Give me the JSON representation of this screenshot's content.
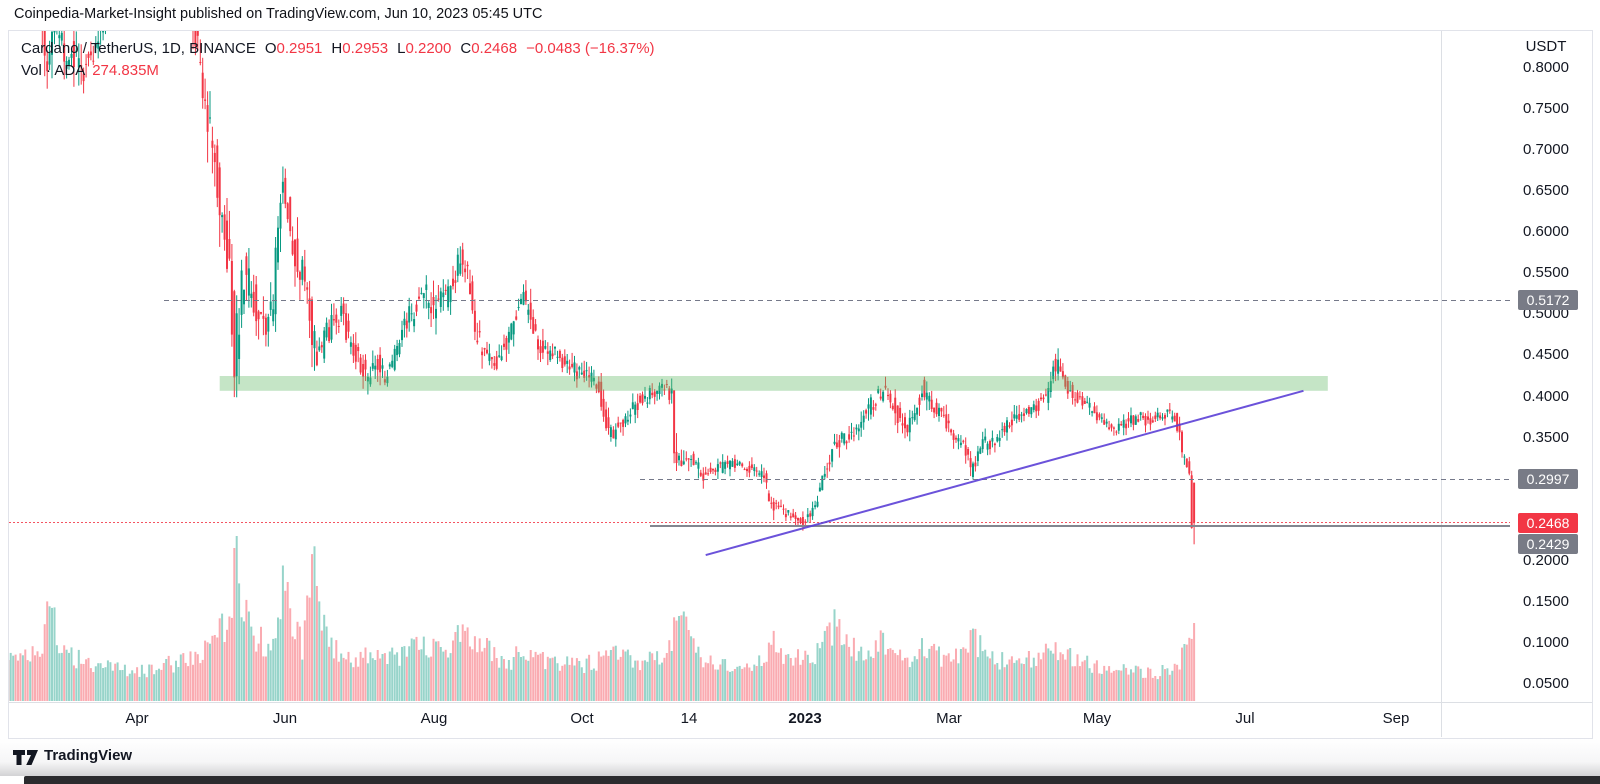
{
  "page": {
    "header": "Coinpedia-Market-Insight published on TradingView.com, Jun 10, 2023 05:45 UTC",
    "footer_brand": "TradingView"
  },
  "legend": {
    "title": "Cardano / TetherUS, 1D, BINANCE",
    "ohlc": [
      {
        "label": "O",
        "value": "0.2951"
      },
      {
        "label": "H",
        "value": "0.2953"
      },
      {
        "label": "L",
        "value": "0.2200"
      },
      {
        "label": "C",
        "value": "0.2468"
      }
    ],
    "change": "−0.0483 (−16.37%)",
    "vol_label": "Vol · ADA",
    "vol_value": "274.835M"
  },
  "colors": {
    "up": "#089981",
    "down": "#F23645",
    "text": "#131722",
    "muted_gray": "#787B86",
    "purple": "#5B3FD6",
    "zone_green": "#66BB6A",
    "badge_gray": "#787B86",
    "badge_red": "#F23645"
  },
  "chart_data": {
    "type": "candlestick",
    "title": "Cardano / TetherUS, 1D, BINANCE",
    "pair": "ADA/USDT",
    "interval": "1D",
    "exchange": "BINANCE",
    "last_candle": {
      "open": 0.2951,
      "high": 0.2953,
      "low": 0.22,
      "close": 0.2468,
      "change": -0.0483,
      "change_pct": -16.37,
      "volume": "274.835M",
      "direction": "down"
    },
    "y_axis": {
      "title": "USDT",
      "ticks": [
        "0.8000",
        "0.7500",
        "0.7000",
        "0.6500",
        "0.6000",
        "0.5500",
        "0.5000",
        "0.4500",
        "0.4000",
        "0.3500",
        "0.2000",
        "0.1500",
        "0.1000",
        "0.0500"
      ],
      "visible_range": [
        0.03,
        0.847
      ],
      "grid": false
    },
    "x_axis": {
      "start_date": "2022-02-04",
      "end_label_date": "2023-09-01",
      "labels": [
        {
          "text": "Apr",
          "day": 56,
          "bold": false
        },
        {
          "text": "Jun",
          "day": 117,
          "bold": false
        },
        {
          "text": "Aug",
          "day": 178,
          "bold": false
        },
        {
          "text": "Oct",
          "day": 239,
          "bold": false
        },
        {
          "text": "14",
          "day": 283,
          "bold": false
        },
        {
          "text": "2023",
          "day": 331,
          "bold": true
        },
        {
          "text": "Mar",
          "day": 390,
          "bold": false
        },
        {
          "text": "May",
          "day": 451,
          "bold": false
        },
        {
          "text": "Jul",
          "day": 512,
          "bold": false
        },
        {
          "text": "Sep",
          "day": 574,
          "bold": false
        }
      ]
    },
    "levels": [
      {
        "value": "0.5172",
        "price": 0.5172,
        "style": "dashed",
        "color": "gray",
        "from_day": 67,
        "role": "resistance"
      },
      {
        "value": "0.2997",
        "price": 0.2997,
        "style": "dashed",
        "color": "gray",
        "from_day": 263,
        "role": "support"
      },
      {
        "value": "0.2468",
        "price": 0.2468,
        "style": "dotted",
        "color": "red",
        "from_day": 0,
        "role": "last-price"
      },
      {
        "value": "0.2429",
        "price": 0.2429,
        "style": "solid",
        "color": "gray",
        "from_day": 267,
        "role": "support-line"
      }
    ],
    "support_zone": {
      "top": 0.425,
      "bottom": 0.407,
      "from_day": 90,
      "to_day": 546,
      "color": "green"
    },
    "trendline": {
      "from": {
        "day": 290,
        "price": 0.207
      },
      "to": {
        "day": 536,
        "price": 0.407
      },
      "color": "purple"
    },
    "price_anchors": [
      [
        0,
        1.02,
        0.04
      ],
      [
        16,
        0.9,
        0.04
      ],
      [
        20,
        0.79,
        0.045
      ],
      [
        23,
        0.86,
        0.03
      ],
      [
        27,
        0.82,
        0.035
      ],
      [
        36,
        0.8,
        0.03
      ],
      [
        40,
        0.82,
        0.03
      ],
      [
        44,
        0.87,
        0.03
      ],
      [
        52,
        1.0,
        0.05
      ],
      [
        60,
        1.12,
        0.05
      ],
      [
        75,
        0.98,
        0.05
      ],
      [
        81,
        0.85,
        0.04
      ],
      [
        86,
        0.74,
        0.05
      ],
      [
        90,
        0.66,
        0.05
      ],
      [
        93,
        0.6,
        0.05
      ],
      [
        95,
        0.55,
        0.05
      ],
      [
        97,
        0.45,
        0.06
      ],
      [
        99,
        0.5,
        0.05
      ],
      [
        101,
        0.55,
        0.04
      ],
      [
        105,
        0.52,
        0.035
      ],
      [
        109,
        0.48,
        0.03
      ],
      [
        113,
        0.52,
        0.035
      ],
      [
        116,
        0.65,
        0.045
      ],
      [
        118,
        0.64,
        0.04
      ],
      [
        121,
        0.58,
        0.035
      ],
      [
        124,
        0.56,
        0.03
      ],
      [
        127,
        0.53,
        0.03
      ],
      [
        129,
        0.47,
        0.04
      ],
      [
        131,
        0.445,
        0.03
      ],
      [
        134,
        0.47,
        0.025
      ],
      [
        138,
        0.49,
        0.025
      ],
      [
        141,
        0.505,
        0.025
      ],
      [
        145,
        0.46,
        0.02
      ],
      [
        148,
        0.445,
        0.02
      ],
      [
        152,
        0.425,
        0.02
      ],
      [
        156,
        0.44,
        0.02
      ],
      [
        159,
        0.42,
        0.018
      ],
      [
        163,
        0.45,
        0.02
      ],
      [
        166,
        0.48,
        0.025
      ],
      [
        170,
        0.5,
        0.025
      ],
      [
        175,
        0.525,
        0.03
      ],
      [
        179,
        0.5,
        0.025
      ],
      [
        183,
        0.52,
        0.025
      ],
      [
        187,
        0.535,
        0.025
      ],
      [
        190,
        0.575,
        0.03
      ],
      [
        193,
        0.55,
        0.025
      ],
      [
        196,
        0.475,
        0.03
      ],
      [
        200,
        0.455,
        0.02
      ],
      [
        204,
        0.44,
        0.02
      ],
      [
        208,
        0.46,
        0.02
      ],
      [
        212,
        0.49,
        0.02
      ],
      [
        215,
        0.52,
        0.025
      ],
      [
        219,
        0.5,
        0.02
      ],
      [
        221,
        0.47,
        0.02
      ],
      [
        225,
        0.455,
        0.018
      ],
      [
        229,
        0.45,
        0.018
      ],
      [
        234,
        0.44,
        0.018
      ],
      [
        238,
        0.43,
        0.018
      ],
      [
        243,
        0.425,
        0.015
      ],
      [
        247,
        0.41,
        0.015
      ],
      [
        251,
        0.355,
        0.02
      ],
      [
        255,
        0.36,
        0.015
      ],
      [
        258,
        0.375,
        0.015
      ],
      [
        262,
        0.39,
        0.015
      ],
      [
        266,
        0.4,
        0.015
      ],
      [
        270,
        0.405,
        0.015
      ],
      [
        274,
        0.415,
        0.015
      ],
      [
        277,
        0.4,
        0.02
      ],
      [
        278,
        0.335,
        0.03
      ],
      [
        280,
        0.325,
        0.02
      ],
      [
        283,
        0.33,
        0.02
      ],
      [
        287,
        0.315,
        0.015
      ],
      [
        290,
        0.305,
        0.012
      ],
      [
        294,
        0.31,
        0.012
      ],
      [
        298,
        0.315,
        0.012
      ],
      [
        302,
        0.318,
        0.012
      ],
      [
        306,
        0.315,
        0.01
      ],
      [
        310,
        0.31,
        0.012
      ],
      [
        315,
        0.3,
        0.012
      ],
      [
        318,
        0.265,
        0.015
      ],
      [
        322,
        0.26,
        0.01
      ],
      [
        326,
        0.255,
        0.01
      ],
      [
        329,
        0.248,
        0.01
      ],
      [
        332,
        0.25,
        0.01
      ],
      [
        335,
        0.26,
        0.01
      ],
      [
        338,
        0.285,
        0.015
      ],
      [
        341,
        0.315,
        0.018
      ],
      [
        344,
        0.345,
        0.018
      ],
      [
        348,
        0.35,
        0.015
      ],
      [
        352,
        0.355,
        0.015
      ],
      [
        356,
        0.375,
        0.018
      ],
      [
        359,
        0.39,
        0.02
      ],
      [
        362,
        0.4,
        0.018
      ],
      [
        365,
        0.41,
        0.018
      ],
      [
        368,
        0.39,
        0.018
      ],
      [
        371,
        0.37,
        0.018
      ],
      [
        374,
        0.36,
        0.015
      ],
      [
        377,
        0.38,
        0.018
      ],
      [
        380,
        0.41,
        0.02
      ],
      [
        383,
        0.4,
        0.015
      ],
      [
        386,
        0.38,
        0.015
      ],
      [
        390,
        0.37,
        0.015
      ],
      [
        394,
        0.35,
        0.015
      ],
      [
        397,
        0.34,
        0.015
      ],
      [
        400,
        0.31,
        0.018
      ],
      [
        402,
        0.32,
        0.015
      ],
      [
        405,
        0.345,
        0.015
      ],
      [
        408,
        0.34,
        0.012
      ],
      [
        412,
        0.355,
        0.015
      ],
      [
        416,
        0.365,
        0.015
      ],
      [
        420,
        0.38,
        0.015
      ],
      [
        424,
        0.385,
        0.012
      ],
      [
        428,
        0.39,
        0.015
      ],
      [
        431,
        0.4,
        0.015
      ],
      [
        434,
        0.44,
        0.02
      ],
      [
        436,
        0.435,
        0.015
      ],
      [
        439,
        0.415,
        0.015
      ],
      [
        443,
        0.4,
        0.012
      ],
      [
        446,
        0.39,
        0.012
      ],
      [
        450,
        0.385,
        0.012
      ],
      [
        453,
        0.37,
        0.012
      ],
      [
        457,
        0.365,
        0.012
      ],
      [
        461,
        0.36,
        0.012
      ],
      [
        465,
        0.37,
        0.012
      ],
      [
        469,
        0.375,
        0.012
      ],
      [
        473,
        0.37,
        0.01
      ],
      [
        477,
        0.375,
        0.01
      ],
      [
        481,
        0.38,
        0.012
      ],
      [
        484,
        0.375,
        0.01
      ],
      [
        486,
        0.35,
        0.02
      ],
      [
        487,
        0.33,
        0.015
      ],
      [
        488,
        0.325,
        0.012
      ],
      [
        489,
        0.315,
        0.012
      ],
      [
        490,
        0.3,
        0.012
      ],
      [
        491,
        0.2468,
        0
      ]
    ],
    "volume_anchors": [
      [
        0,
        40
      ],
      [
        16,
        45
      ],
      [
        20,
        105
      ],
      [
        24,
        50
      ],
      [
        34,
        40
      ],
      [
        44,
        35
      ],
      [
        60,
        30
      ],
      [
        81,
        45
      ],
      [
        90,
        70
      ],
      [
        95,
        90
      ],
      [
        97,
        160
      ],
      [
        99,
        110
      ],
      [
        103,
        70
      ],
      [
        109,
        55
      ],
      [
        113,
        60
      ],
      [
        116,
        128
      ],
      [
        119,
        80
      ],
      [
        124,
        55
      ],
      [
        129,
        146
      ],
      [
        131,
        90
      ],
      [
        135,
        60
      ],
      [
        141,
        45
      ],
      [
        147,
        40
      ],
      [
        152,
        45
      ],
      [
        159,
        42
      ],
      [
        166,
        48
      ],
      [
        175,
        55
      ],
      [
        182,
        45
      ],
      [
        190,
        68
      ],
      [
        196,
        62
      ],
      [
        204,
        42
      ],
      [
        210,
        40
      ],
      [
        215,
        52
      ],
      [
        221,
        44
      ],
      [
        229,
        38
      ],
      [
        238,
        36
      ],
      [
        245,
        40
      ],
      [
        251,
        62
      ],
      [
        257,
        45
      ],
      [
        264,
        40
      ],
      [
        270,
        42
      ],
      [
        276,
        50
      ],
      [
        278,
        100
      ],
      [
        281,
        78
      ],
      [
        285,
        55
      ],
      [
        290,
        42
      ],
      [
        297,
        36
      ],
      [
        304,
        34
      ],
      [
        310,
        36
      ],
      [
        315,
        40
      ],
      [
        318,
        62
      ],
      [
        323,
        42
      ],
      [
        329,
        45
      ],
      [
        334,
        40
      ],
      [
        338,
        55
      ],
      [
        341,
        68
      ],
      [
        344,
        77
      ],
      [
        349,
        55
      ],
      [
        354,
        48
      ],
      [
        359,
        55
      ],
      [
        363,
        60
      ],
      [
        368,
        48
      ],
      [
        372,
        44
      ],
      [
        377,
        46
      ],
      [
        380,
        55
      ],
      [
        385,
        46
      ],
      [
        390,
        42
      ],
      [
        395,
        44
      ],
      [
        400,
        62
      ],
      [
        404,
        50
      ],
      [
        409,
        42
      ],
      [
        415,
        40
      ],
      [
        420,
        44
      ],
      [
        426,
        42
      ],
      [
        431,
        48
      ],
      [
        434,
        56
      ],
      [
        438,
        46
      ],
      [
        443,
        40
      ],
      [
        448,
        36
      ],
      [
        453,
        34
      ],
      [
        458,
        32
      ],
      [
        463,
        30
      ],
      [
        468,
        30
      ],
      [
        473,
        28
      ],
      [
        478,
        30
      ],
      [
        483,
        32
      ],
      [
        486,
        45
      ],
      [
        488,
        50
      ],
      [
        490,
        55
      ],
      [
        491,
        78
      ]
    ]
  }
}
